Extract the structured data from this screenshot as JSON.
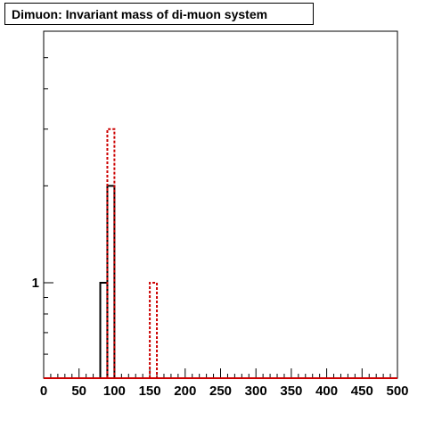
{
  "chart_data": {
    "type": "histogram",
    "title": "Dimuon: Invariant mass of di-muon system",
    "xlabel": "",
    "ylabel": "",
    "x_range": [
      0,
      500
    ],
    "y_scale": "log",
    "grid": false,
    "bin_width": 10,
    "x_tick_labels": [
      "0",
      "50",
      "100",
      "150",
      "200",
      "250",
      "300",
      "350",
      "400",
      "450",
      "500"
    ],
    "y_tick_labels": [
      "1"
    ],
    "series": [
      {
        "color": "#000000",
        "line_style": "solid",
        "bins": [
          {
            "x": [
              80,
              90
            ],
            "value": 1
          },
          {
            "x": [
              90,
              100
            ],
            "value": 2
          }
        ]
      },
      {
        "color": "#cc0000",
        "line_style": "dotted",
        "bins": [
          {
            "x": [
              90,
              100
            ],
            "value": 3
          },
          {
            "x": [
              150,
              160
            ],
            "value": 1
          }
        ]
      }
    ]
  }
}
